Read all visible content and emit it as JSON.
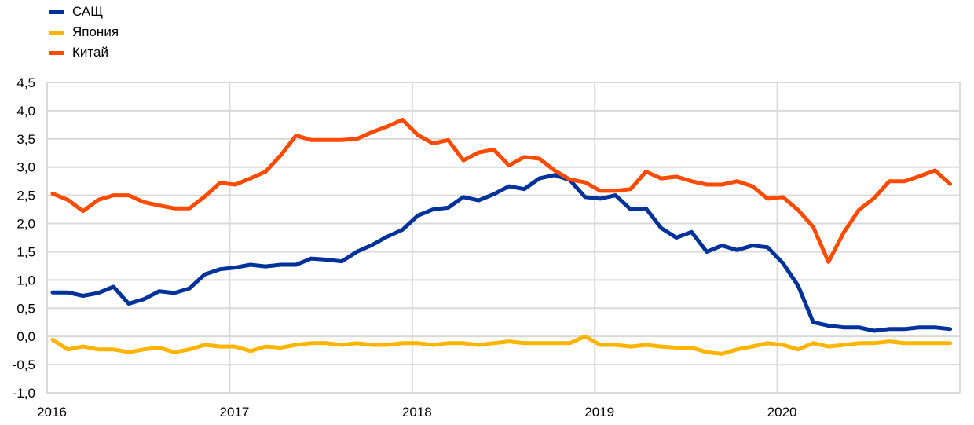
{
  "chart_data": {
    "type": "line",
    "title": "",
    "xlabel": "",
    "ylabel": "",
    "ylim": [
      -1.0,
      4.5
    ],
    "yticks": [
      "-1,0",
      "-0,5",
      "0,0",
      "0,5",
      "1,0",
      "1,5",
      "2,0",
      "2,5",
      "3,0",
      "3,5",
      "4,0",
      "4,5"
    ],
    "ytick_values": [
      -1.0,
      -0.5,
      0.0,
      0.5,
      1.0,
      1.5,
      2.0,
      2.5,
      3.0,
      3.5,
      4.0,
      4.5
    ],
    "xticks": [
      "2016",
      "2017",
      "2018",
      "2019",
      "2020"
    ],
    "x_start": "2016-01",
    "x_frequency": "monthly",
    "grid": true,
    "legend_position": "top-left",
    "series": [
      {
        "name": "САЩ",
        "color": "#003299",
        "values": [
          0.78,
          0.78,
          0.72,
          0.77,
          0.88,
          0.58,
          0.66,
          0.8,
          0.77,
          0.85,
          1.1,
          1.19,
          1.22,
          1.27,
          1.24,
          1.27,
          1.27,
          1.38,
          1.36,
          1.33,
          1.5,
          1.62,
          1.77,
          1.89,
          2.14,
          2.25,
          2.28,
          2.47,
          2.41,
          2.52,
          2.66,
          2.61,
          2.8,
          2.86,
          2.77,
          2.47,
          2.44,
          2.5,
          2.25,
          2.27,
          1.92,
          1.75,
          1.85,
          1.5,
          1.61,
          1.53,
          1.61,
          1.58,
          1.3,
          0.9,
          0.25,
          0.19,
          0.16,
          0.16,
          0.1,
          0.13,
          0.13,
          0.16,
          0.16,
          0.13
        ]
      },
      {
        "name": "Япония",
        "color": "#FFB400",
        "values": [
          -0.06,
          -0.23,
          -0.18,
          -0.23,
          -0.23,
          -0.28,
          -0.23,
          -0.2,
          -0.28,
          -0.23,
          -0.15,
          -0.18,
          -0.18,
          -0.26,
          -0.18,
          -0.2,
          -0.15,
          -0.12,
          -0.12,
          -0.15,
          -0.12,
          -0.15,
          -0.15,
          -0.12,
          -0.12,
          -0.15,
          -0.12,
          -0.12,
          -0.15,
          -0.12,
          -0.09,
          -0.12,
          -0.12,
          -0.12,
          -0.12,
          0.0,
          -0.15,
          -0.15,
          -0.18,
          -0.15,
          -0.18,
          -0.2,
          -0.2,
          -0.28,
          -0.31,
          -0.23,
          -0.18,
          -0.12,
          -0.15,
          -0.23,
          -0.12,
          -0.18,
          -0.15,
          -0.12,
          -0.12,
          -0.09,
          -0.12,
          -0.12,
          -0.12,
          -0.12
        ]
      },
      {
        "name": "Китай",
        "color": "#FF4B00",
        "values": [
          2.53,
          2.42,
          2.22,
          2.42,
          2.5,
          2.5,
          2.38,
          2.32,
          2.27,
          2.27,
          2.48,
          2.72,
          2.69,
          2.8,
          2.92,
          3.21,
          3.56,
          3.48,
          3.48,
          3.48,
          3.5,
          3.62,
          3.72,
          3.84,
          3.57,
          3.42,
          3.48,
          3.12,
          3.26,
          3.31,
          3.03,
          3.18,
          3.15,
          2.94,
          2.78,
          2.73,
          2.58,
          2.58,
          2.61,
          2.92,
          2.8,
          2.83,
          2.75,
          2.69,
          2.69,
          2.75,
          2.66,
          2.44,
          2.47,
          2.24,
          1.94,
          1.32,
          1.84,
          2.24,
          2.45,
          2.75,
          2.75,
          2.84,
          2.94,
          2.7
        ]
      }
    ]
  }
}
